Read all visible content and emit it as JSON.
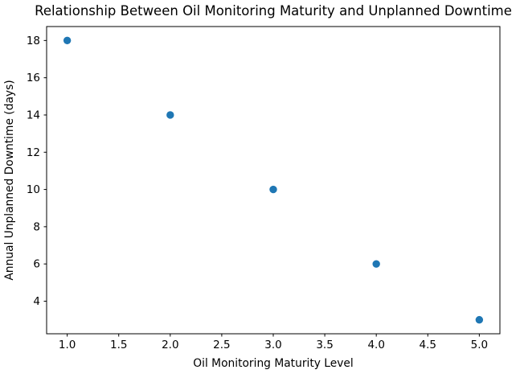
{
  "figure": {
    "background_color": "#ffffff",
    "text_color": "#000000"
  },
  "chart_data": {
    "type": "scatter",
    "title": "Relationship Between Oil Monitoring Maturity and Unplanned Downtime",
    "xlabel": "Oil Monitoring Maturity Level",
    "ylabel": "Annual Unplanned Downtime (days)",
    "x": [
      1,
      2,
      3,
      4,
      5
    ],
    "y": [
      18,
      14,
      10,
      6,
      3
    ],
    "xlim": [
      0.8,
      5.2
    ],
    "ylim": [
      2.25,
      18.75
    ],
    "xticks": [
      1.0,
      1.5,
      2.0,
      2.5,
      3.0,
      3.5,
      4.0,
      4.5,
      5.0
    ],
    "xtick_labels": [
      "1.0",
      "1.5",
      "2.0",
      "2.5",
      "3.0",
      "3.5",
      "4.0",
      "4.5",
      "5.0"
    ],
    "yticks": [
      4,
      6,
      8,
      10,
      12,
      14,
      16,
      18
    ],
    "ytick_labels": [
      "4",
      "6",
      "8",
      "10",
      "12",
      "14",
      "16",
      "18"
    ],
    "marker_color": "#1f77b4",
    "marker_radius": 4.7,
    "axis_color": "#000000",
    "grid": false,
    "legend": null
  }
}
